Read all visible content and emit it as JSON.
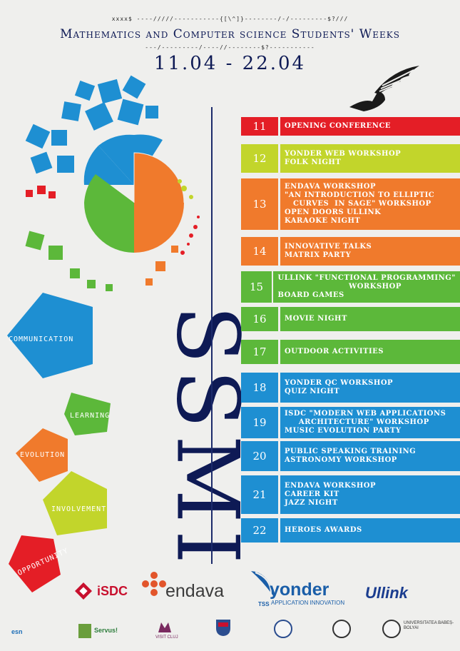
{
  "decor_top": "xxxx$ ----/////-----------{[\\^]}--------/-/---------$?///",
  "decor_bottom": "---/---------/----//--------$?-----------",
  "title": "Mathematics and Computer science Students' Weeks",
  "dates": "11.04 - 22.04",
  "brand": "SSMI",
  "keywords": [
    "COMMUNICATION",
    "LEARNING",
    "EVOLUTION",
    "INVOLVEMENT",
    "OPPORTUNITY"
  ],
  "schedule": [
    {
      "day": "11",
      "color": "#e41e26",
      "events": "OPENING CONFERENCE"
    },
    {
      "day": "12",
      "color": "#c2d52b",
      "events": "YONDER WEB WORKSHOP\nFOLK NIGHT"
    },
    {
      "day": "13",
      "color": "#f07a2c",
      "events": "ENDAVA WORKSHOP\n\"AN INTRODUCTION TO ELLIPTIC\n   CURVES  IN SAGE\" WORKSHOP\nOPEN DOORS ULLINK\nKARAOKE NIGHT"
    },
    {
      "day": "14",
      "color": "#f07a2c",
      "events": "INNOVATIVE TALKS\nMATRIX PARTY"
    },
    {
      "day": "15",
      "color": "#5cb83a",
      "events": "ULLINK \"FUNCTIONAL PROGRAMMING\"\n                         WORKSHOP\nBOARD GAMES"
    },
    {
      "day": "16",
      "color": "#5cb83a",
      "events": "MOVIE NIGHT"
    },
    {
      "day": "17",
      "color": "#5cb83a",
      "events": "OUTDOOR ACTIVITIES"
    },
    {
      "day": "18",
      "color": "#1e8fd2",
      "events": "YONDER QC WORKSHOP\nQUIZ NIGHT"
    },
    {
      "day": "19",
      "color": "#1e8fd2",
      "events": "ISDC \"MODERN WEB APPLICATIONS\n     ARCHITECTURE\" WORKSHOP\nMUSIC EVOLUTION PARTY"
    },
    {
      "day": "20",
      "color": "#1e8fd2",
      "events": "PUBLIC SPEAKING TRAINING\nASTRONOMY WORKSHOP"
    },
    {
      "day": "21",
      "color": "#1e8fd2",
      "events": "ENDAVA WORKSHOP\nCAREER KIT\nJAZZ NIGHT"
    },
    {
      "day": "22",
      "color": "#1e8fd2",
      "events": "HEROES AWARDS"
    }
  ],
  "sponsors": {
    "isdc": "iSDC",
    "endava": "endava",
    "yonder": "yonder",
    "yonder_tag": "APPLICATION INNOVATION",
    "yonder_tss": "TSS",
    "ullink": "Ullink"
  },
  "small_logos": [
    "esn",
    "Servus!",
    "VISIT CLUJ",
    "",
    "",
    "",
    "UNIVERSITATEA BABEȘ-BOLYAI"
  ]
}
